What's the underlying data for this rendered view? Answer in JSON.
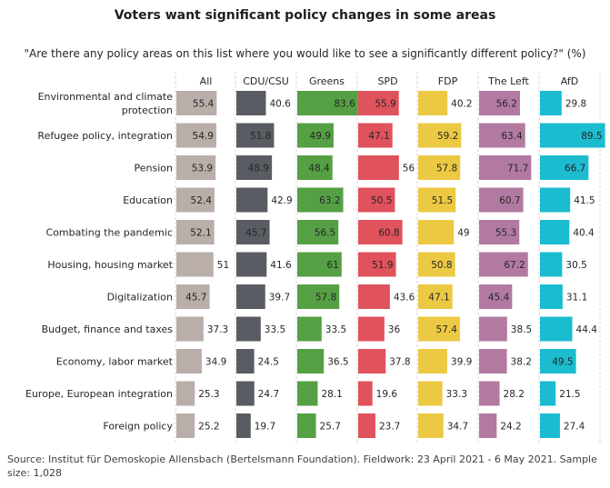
{
  "chart_data": {
    "type": "bar",
    "orientation": "horizontal",
    "layout": "small-multiples",
    "title": "Voters want significant policy changes in some areas",
    "subtitle": "\"Are there any policy areas on this list where you would like to see a significantly different policy?\" (%)",
    "source": "Source: Institut für Demoskopie Allensbach (Bertelsmann Foundation). Fieldwork: 23 April 2021 - 6 May 2021. Sample size: 1,028",
    "xlim": [
      0,
      100
    ],
    "categories": [
      "Environmental and climate protection",
      "Refugee policy, integration",
      "Pension",
      "Education",
      "Combating the pandemic",
      "Housing, housing market",
      "Digitalization",
      "Budget, finance and taxes",
      "Economy, labor market",
      "Europe, European integration",
      "Foreign policy"
    ],
    "category_lines": [
      [
        "Environmental and climate",
        "protection"
      ],
      [
        "Refugee policy, integration"
      ],
      [
        "Pension"
      ],
      [
        "Education"
      ],
      [
        "Combating the pandemic"
      ],
      [
        "Housing, housing market"
      ],
      [
        "Digitalization"
      ],
      [
        "Budget, finance and taxes"
      ],
      [
        "Economy, labor market"
      ],
      [
        "Europe, European integration"
      ],
      [
        "Foreign policy"
      ]
    ],
    "series": [
      {
        "name": "All",
        "color": "#b9aea9",
        "values": [
          55.4,
          54.9,
          53.9,
          52.4,
          52.1,
          51,
          45.7,
          37.3,
          34.9,
          25.3,
          25.2
        ]
      },
      {
        "name": "CDU/CSU",
        "color": "#595c62",
        "values": [
          40.6,
          51.8,
          48.9,
          42.9,
          45.7,
          41.6,
          39.7,
          33.5,
          24.5,
          24.7,
          19.7
        ]
      },
      {
        "name": "Greens",
        "color": "#55a044",
        "values": [
          83.6,
          49.9,
          48.4,
          63.2,
          56.5,
          61,
          57.8,
          33.5,
          36.5,
          28.1,
          25.7
        ]
      },
      {
        "name": "SPD",
        "color": "#e0525c",
        "values": [
          55.9,
          47.1,
          56,
          50.5,
          60.8,
          51.9,
          43.6,
          36,
          37.8,
          19.6,
          23.7
        ]
      },
      {
        "name": "FDP",
        "color": "#ecc942",
        "values": [
          40.2,
          59.2,
          57.8,
          51.5,
          49,
          50.8,
          47.1,
          57.4,
          39.9,
          33.3,
          34.7
        ]
      },
      {
        "name": "The Left",
        "color": "#b27aa1",
        "values": [
          56.2,
          63.4,
          71.7,
          60.7,
          55.3,
          67.2,
          45.4,
          38.5,
          38.2,
          28.2,
          24.2
        ]
      },
      {
        "name": "AfD",
        "color": "#1bbcd0",
        "values": [
          29.8,
          89.5,
          66.7,
          41.5,
          40.4,
          30.5,
          31.1,
          44.4,
          49.5,
          21.5,
          27.4
        ]
      }
    ]
  }
}
